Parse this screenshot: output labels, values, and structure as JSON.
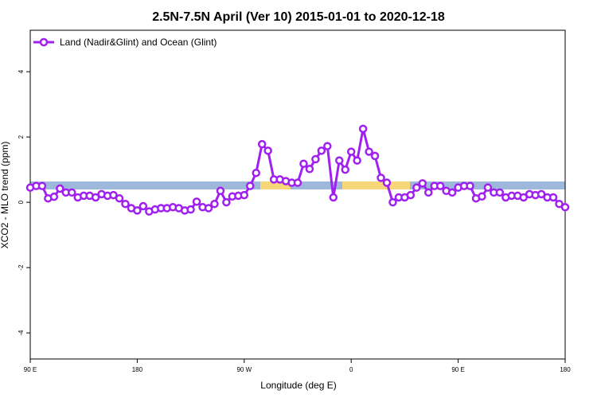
{
  "chart_data": {
    "type": "line",
    "title": "2.5N-7.5N April (Ver 10)   2015-01-01 to 2020-12-18",
    "x_label": "Longitude (deg E)",
    "y_label": "XCO2 - MLO trend (ppm)",
    "x": [
      90,
      95,
      100,
      105,
      110,
      115,
      120,
      125,
      130,
      135,
      140,
      145,
      150,
      155,
      160,
      165,
      170,
      175,
      180,
      185,
      190,
      195,
      200,
      205,
      210,
      215,
      220,
      225,
      230,
      235,
      240,
      245,
      250,
      255,
      260,
      265,
      270,
      275,
      280,
      285,
      290,
      295,
      300,
      305,
      310,
      315,
      320,
      325,
      330,
      335,
      340,
      345,
      350,
      355,
      360,
      365,
      370,
      375,
      380,
      385,
      390,
      395,
      400,
      405,
      410,
      415,
      420,
      425,
      430,
      435,
      440,
      445,
      450,
      455,
      460,
      465,
      470,
      475,
      480,
      485,
      490,
      495,
      500,
      505,
      510,
      515,
      520,
      525,
      530,
      535,
      540
    ],
    "series": [
      {
        "name": "Land (Nadir&Glint) and Ocean (Glint)",
        "color": "#a020f0",
        "values": [
          0.45,
          0.5,
          0.5,
          0.12,
          0.17,
          0.42,
          0.3,
          0.3,
          0.15,
          0.2,
          0.2,
          0.15,
          0.25,
          0.2,
          0.22,
          0.12,
          -0.05,
          -0.18,
          -0.25,
          -0.12,
          -0.28,
          -0.22,
          -0.18,
          -0.18,
          -0.15,
          -0.18,
          -0.25,
          -0.22,
          0.02,
          -0.15,
          -0.18,
          -0.05,
          0.35,
          0.0,
          0.18,
          0.2,
          0.22,
          0.5,
          0.9,
          1.78,
          1.58,
          0.7,
          0.7,
          0.65,
          0.6,
          0.6,
          1.18,
          1.02,
          1.32,
          1.58,
          1.72,
          0.15,
          1.28,
          1.0,
          1.55,
          1.28,
          2.25,
          1.55,
          1.42,
          0.75,
          0.6,
          0.0,
          0.15,
          0.15,
          0.22,
          0.45,
          0.58,
          0.3,
          0.5,
          0.5,
          0.35,
          0.3,
          0.45,
          0.5,
          0.5,
          0.12,
          0.18,
          0.45,
          0.3,
          0.3,
          0.15,
          0.2,
          0.2,
          0.15,
          0.25,
          0.22,
          0.25,
          0.15,
          0.15,
          -0.05,
          -0.15
        ]
      }
    ],
    "xlim": [
      90,
      540
    ],
    "xticks": [
      {
        "value": 90,
        "label": "90 E"
      },
      180,
      {
        "value": 270,
        "label": "90 W"
      },
      {
        "value": 360,
        "label": "0"
      },
      {
        "value": 450,
        "label": "90 E"
      },
      {
        "value": 540,
        "label": "180"
      }
    ],
    "ylim": [
      -4.8,
      5.27
    ],
    "yticks": [
      4,
      2,
      0,
      -2,
      -4
    ],
    "legend": "top-left"
  }
}
